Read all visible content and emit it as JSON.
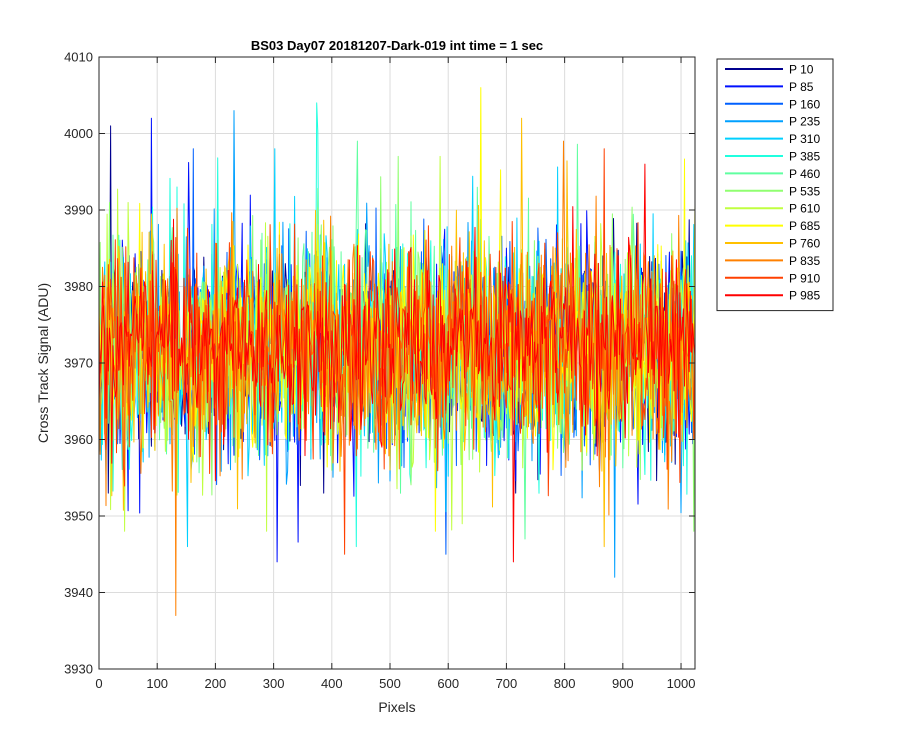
{
  "chart_data": {
    "type": "line",
    "title": "BS03 Day07 20181207-Dark-019 int time = 1 sec",
    "xlabel": "Pixels",
    "ylabel": "Cross Track Signal (ADU)",
    "xlim": [
      0,
      1024
    ],
    "ylim": [
      3930,
      4010
    ],
    "xticks": [
      0,
      100,
      200,
      300,
      400,
      500,
      600,
      700,
      800,
      900,
      1000
    ],
    "yticks": [
      3930,
      3940,
      3950,
      3960,
      3970,
      3980,
      3990,
      4000,
      4010
    ],
    "grid": true,
    "legend_position": "outside-top-right",
    "series": [
      {
        "name": "P 10",
        "color": "#00008f",
        "mean": 3972,
        "spread": 7,
        "min": 3953,
        "max": 4001
      },
      {
        "name": "P 85",
        "color": "#0010ff",
        "mean": 3972,
        "spread": 7,
        "min": 3944,
        "max": 4002
      },
      {
        "name": "P 160",
        "color": "#0060ff",
        "mean": 3972,
        "spread": 7,
        "min": 3945,
        "max": 3998
      },
      {
        "name": "P 235",
        "color": "#00a0ff",
        "mean": 3972,
        "spread": 7,
        "min": 3942,
        "max": 4003
      },
      {
        "name": "P 310",
        "color": "#00d0ff",
        "mean": 3972,
        "spread": 7,
        "min": 3946,
        "max": 3998
      },
      {
        "name": "P 385",
        "color": "#20ffdf",
        "mean": 3972,
        "spread": 7,
        "min": 3946,
        "max": 4004
      },
      {
        "name": "P 460",
        "color": "#60ffa0",
        "mean": 3972,
        "spread": 7,
        "min": 3947,
        "max": 3999
      },
      {
        "name": "P 535",
        "color": "#90ff70",
        "mean": 3972,
        "spread": 7,
        "min": 3948,
        "max": 3997
      },
      {
        "name": "P 610",
        "color": "#c0ff40",
        "mean": 3972,
        "spread": 7,
        "min": 3948,
        "max": 3997
      },
      {
        "name": "P 685",
        "color": "#ffff00",
        "mean": 3972,
        "spread": 7,
        "min": 3948,
        "max": 4006
      },
      {
        "name": "P 760",
        "color": "#ffc000",
        "mean": 3972,
        "spread": 7,
        "min": 3946,
        "max": 4002
      },
      {
        "name": "P 835",
        "color": "#ff8000",
        "mean": 3972,
        "spread": 7,
        "min": 3937,
        "max": 3999
      },
      {
        "name": "P 910",
        "color": "#ff4000",
        "mean": 3972,
        "spread": 7,
        "min": 3945,
        "max": 3998
      },
      {
        "name": "P 985",
        "color": "#ff0000",
        "mean": 3972,
        "spread": 6,
        "min": 3944,
        "max": 3996
      }
    ]
  }
}
